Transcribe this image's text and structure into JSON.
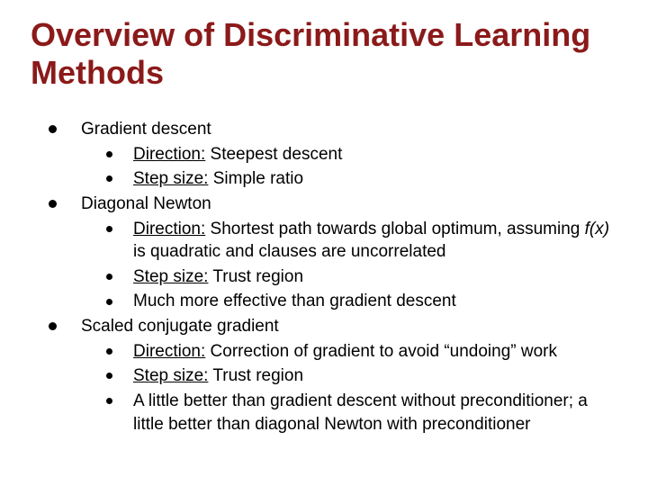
{
  "title": "Overview of Discriminative Learning Methods",
  "colors": {
    "title": "#8b1a1a",
    "bullet": "#000000",
    "background": "#ffffff",
    "text": "#000000"
  },
  "typography": {
    "title_fontsize": 36,
    "body_fontsize": 19,
    "font_family": "Arial"
  },
  "items": [
    {
      "label": "Gradient descent",
      "sub": [
        {
          "u": "Direction:",
          "rest": " Steepest descent"
        },
        {
          "u": "Step size:",
          "rest": " Simple ratio"
        }
      ]
    },
    {
      "label": "Diagonal Newton",
      "sub": [
        {
          "u": "Direction:",
          "rest_pre": " Shortest path towards global optimum, assuming ",
          "italic": "f(x)",
          "rest_post": " is quadratic and clauses are uncorrelated"
        },
        {
          "u": "Step size:",
          "rest": " Trust region"
        },
        {
          "plain": "Much more effective than gradient descent"
        }
      ]
    },
    {
      "label": "Scaled conjugate gradient",
      "sub": [
        {
          "u": "Direction:",
          "rest": " Correction of gradient to avoid “undoing” work"
        },
        {
          "u": "Step size:",
          "rest": " Trust region"
        },
        {
          "plain": "A little better than gradient descent without preconditioner; a little better than diagonal Newton with preconditioner"
        }
      ]
    }
  ]
}
